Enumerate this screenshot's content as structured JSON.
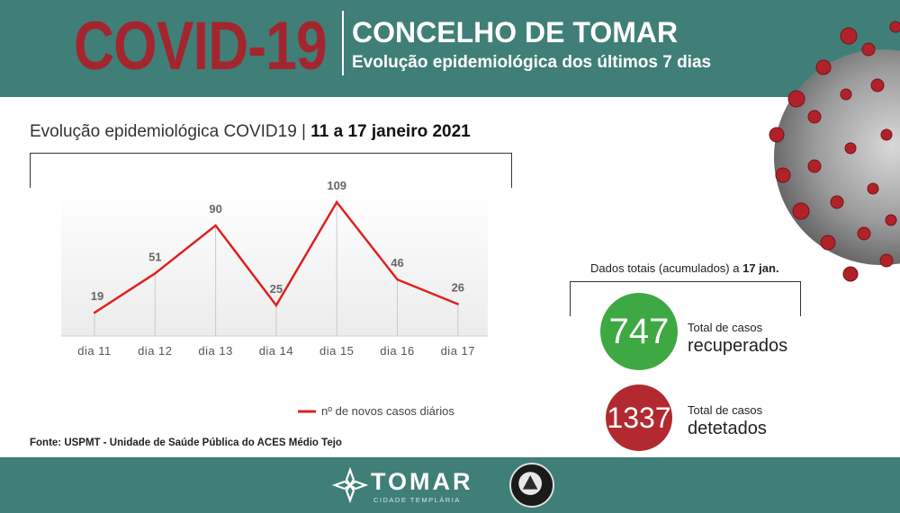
{
  "header": {
    "big_title": "COVID-19",
    "title": "CONCELHO DE TOMAR",
    "subtitle": "Evolução epidemiológica dos últimos 7 dias"
  },
  "chart_heading": {
    "prefix": "Evolução epidemiológica COVID19 | ",
    "period": "11 a 17 janeiro 2021"
  },
  "chart_data": {
    "type": "line",
    "categories": [
      "dia 11",
      "dia 12",
      "dia 13",
      "dia 14",
      "dia 15",
      "dia 16",
      "dia 17"
    ],
    "series": [
      {
        "name": "nº de novos casos diários",
        "values": [
          19,
          51,
          90,
          25,
          109,
          46,
          26
        ],
        "color": "#e02020"
      }
    ],
    "ylim": [
      0,
      120
    ],
    "grid": "vertical",
    "legend": "bottom-right"
  },
  "source": "Fonte: USPMT - Unidade de Saúde Pública do ACES Médio Tejo",
  "totals": {
    "label_prefix": "Dados totais (acumulados) a ",
    "label_date": "17 jan.",
    "recovered": {
      "value": "747",
      "small": "Total de casos",
      "big": "recuperados",
      "color": "#3ea843"
    },
    "detected": {
      "value": "1337",
      "small": "Total de casos",
      "big": "detetados",
      "color": "#b22a2f"
    }
  },
  "footer": {
    "logo_text": "TOMAR",
    "logo_sub": "CIDADE TEMPLÁRIA"
  },
  "icons": {
    "virus": "coronavirus-image",
    "city_logo": "tomar-cross-icon",
    "civil_protection": "civil-protection-emblem-icon"
  }
}
